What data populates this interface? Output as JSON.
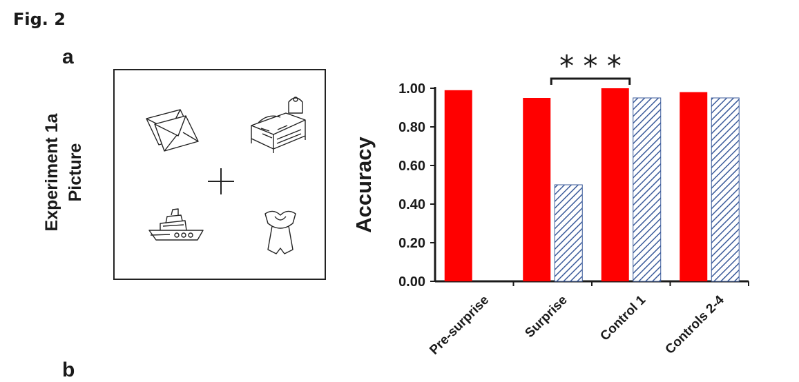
{
  "figure": {
    "title": "Fig. 2",
    "panel_a_label": "a",
    "panel_b_label": "b",
    "side_label_line1": "Experiment 1a",
    "side_label_line2": "Picture",
    "stimulus_icons": [
      "envelopes-icon",
      "bed-icon",
      "fixation-cross-icon",
      "boat-icon",
      "dress-icon"
    ]
  },
  "chart_data": {
    "type": "bar",
    "title": "",
    "xlabel": "",
    "ylabel": "Accuracy",
    "ylim": [
      0,
      1.0
    ],
    "yticks": [
      "0.00",
      "0.20",
      "0.40",
      "0.60",
      "0.80",
      "1.00"
    ],
    "categories": [
      "Pre-surprise",
      "Surprise",
      "Control 1",
      "Controls 2-4"
    ],
    "series": [
      {
        "style": "solid",
        "color": "#ff0000",
        "values": [
          0.99,
          0.95,
          1.0,
          0.98
        ]
      },
      {
        "style": "hatched",
        "color": "#3a5a9a",
        "values": [
          null,
          0.5,
          0.95,
          0.95
        ]
      }
    ],
    "significance": {
      "label": "* * *",
      "between": [
        "Surprise",
        "Control 1"
      ]
    },
    "grid": false,
    "legend": "none"
  }
}
